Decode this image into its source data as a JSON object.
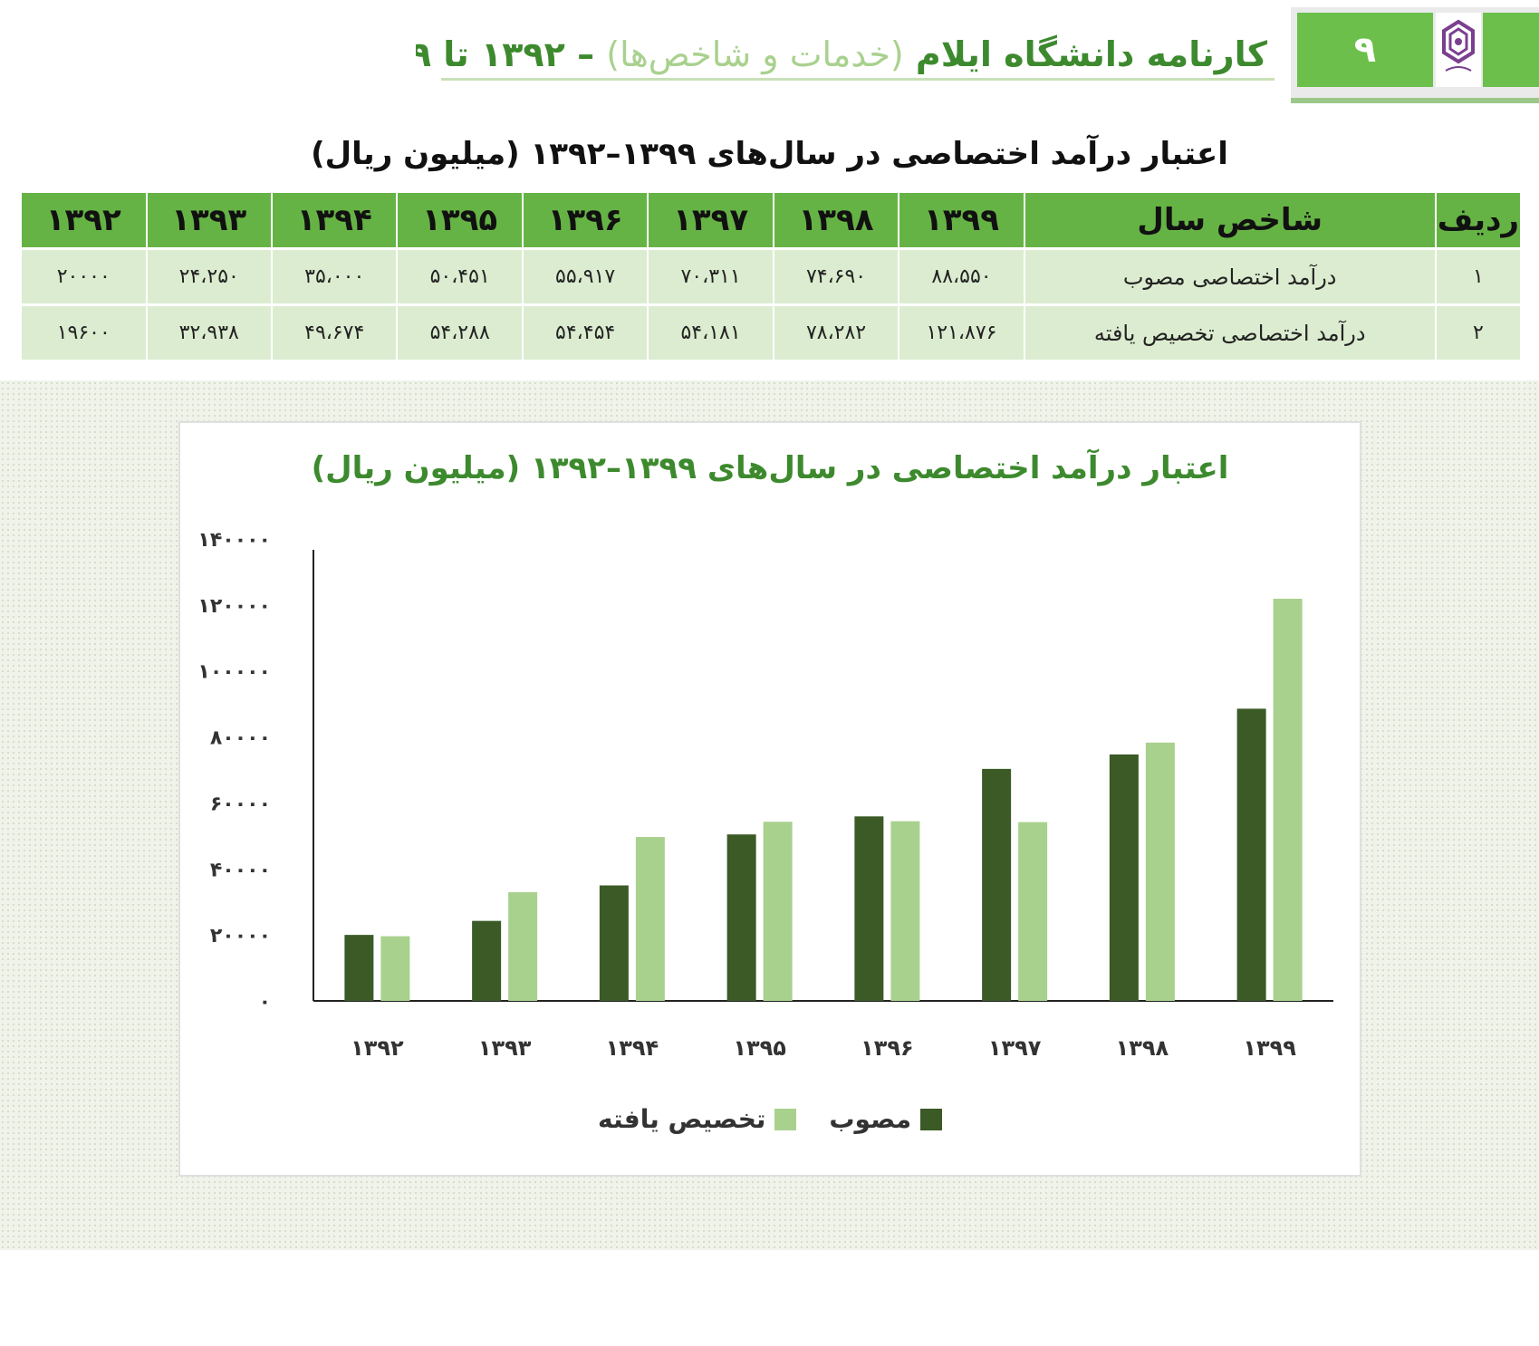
{
  "header": {
    "title_part1": "کارنامه دانشگاه ایلام",
    "title_part2": "(خدمات و شاخص‌ها)",
    "title_dash": "–",
    "title_part3": "۱۳۹۲ تا ۱۳۹۹",
    "page_number": "۹",
    "logo_caption": "دانشگاه ایلام",
    "colors": {
      "accent": "#6bbf4a",
      "accent_light": "#a9d18e",
      "dark_green": "#3d5a25"
    }
  },
  "table": {
    "title": "اعتبار درآمد اختصاصی در سال‌های ۱۳۹۹–۱۳۹۲ (میلیون ریال)",
    "headers": [
      "ردیف",
      "شاخص سال",
      "۱۳۹۹",
      "۱۳۹۸",
      "۱۳۹۷",
      "۱۳۹۶",
      "۱۳۹۵",
      "۱۳۹۴",
      "۱۳۹۳",
      "۱۳۹۲"
    ],
    "rows": [
      [
        "۱",
        "درآمد اختصاصی مصوب",
        "۸۸،۵۵۰",
        "۷۴،۶۹۰",
        "۷۰،۳۱۱",
        "۵۵،۹۱۷",
        "۵۰،۴۵۱",
        "۳۵،۰۰۰",
        "۲۴،۲۵۰",
        "۲۰۰۰۰"
      ],
      [
        "۲",
        "درآمد اختصاصی تخصیص یافته",
        "۱۲۱،۸۷۶",
        "۷۸،۲۸۲",
        "۵۴،۱۸۱",
        "۵۴،۴۵۴",
        "۵۴،۲۸۸",
        "۴۹،۶۷۴",
        "۳۲،۹۳۸",
        "۱۹۶۰۰"
      ]
    ]
  },
  "chart_data": {
    "type": "bar",
    "title": "اعتبار درآمد اختصاصی در سال‌های ۱۳۹۹–۱۳۹۲ (میلیون ریال)",
    "categories": [
      "۱۳۹۲",
      "۱۳۹۳",
      "۱۳۹۴",
      "۱۳۹۵",
      "۱۳۹۶",
      "۱۳۹۷",
      "۱۳۹۸",
      "۱۳۹۹"
    ],
    "series": [
      {
        "name": "مصوب",
        "color": "#3b5a26",
        "values": [
          20000,
          24250,
          35000,
          50451,
          55917,
          70311,
          74690,
          88550
        ]
      },
      {
        "name": "تخصیص یافته",
        "color": "#a9d18e",
        "values": [
          19600,
          32938,
          49674,
          54288,
          54454,
          54181,
          78282,
          121876
        ]
      }
    ],
    "ylim": [
      0,
      140000
    ],
    "yticks": [
      0,
      20000,
      40000,
      60000,
      80000,
      100000,
      120000,
      140000
    ],
    "ytick_labels": [
      "۰",
      "۲۰۰۰۰",
      "۴۰۰۰۰",
      "۶۰۰۰۰",
      "۸۰۰۰۰",
      "۱۰۰۰۰۰",
      "۱۲۰۰۰۰",
      "۱۴۰۰۰۰"
    ],
    "xlabel": "",
    "ylabel": "",
    "grid": false,
    "legend_position": "bottom"
  }
}
